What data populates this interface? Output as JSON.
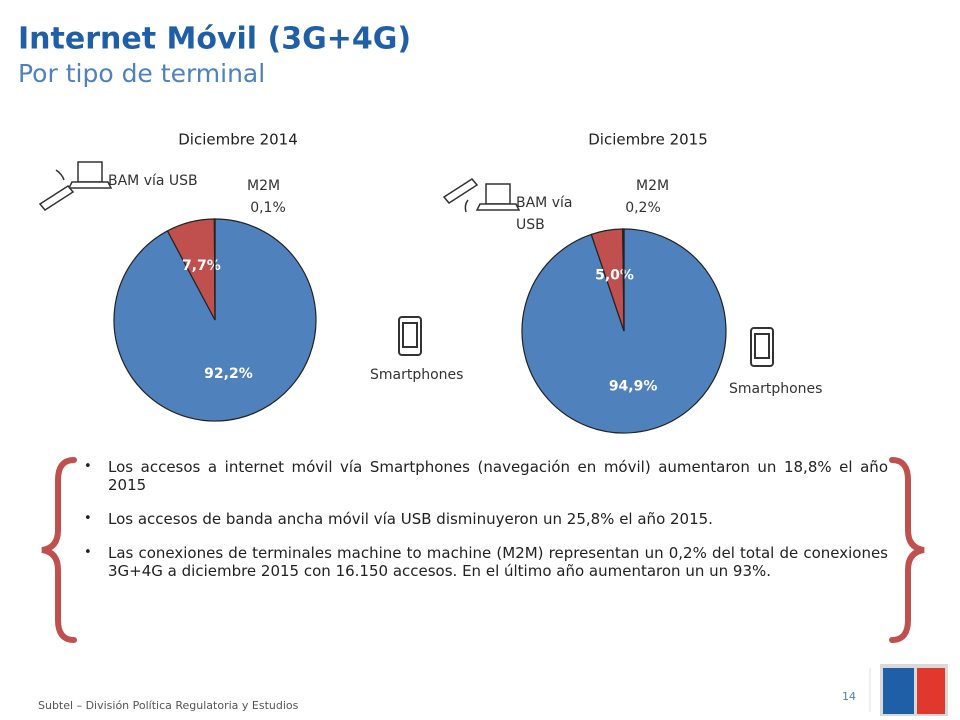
{
  "header": {
    "title": "Internet Móvil (3G+4G)",
    "subtitle": "Por tipo de terminal"
  },
  "chart_data": [
    {
      "type": "pie",
      "title": "Diciembre 2014",
      "categories": [
        "Smartphones",
        "BAM vía USB",
        "M2M"
      ],
      "values": [
        92.2,
        7.7,
        0.1
      ],
      "value_labels": [
        "92,2%",
        "7,7%",
        "0,1%"
      ],
      "colors": [
        "#4f81bd",
        "#c0504d",
        "#a33a37"
      ]
    },
    {
      "type": "pie",
      "title": "Diciembre 2015",
      "categories": [
        "Smartphones",
        "BAM vía USB",
        "M2M"
      ],
      "values": [
        94.9,
        5.0,
        0.2
      ],
      "value_labels": [
        "94,9%",
        "5,0%",
        "0,2%"
      ],
      "colors": [
        "#4f81bd",
        "#c0504d",
        "#a33a37"
      ]
    }
  ],
  "bullets": [
    "Los accesos a internet  móvil vía Smartphones (navegación en móvil) aumentaron un 18,8% el año 2015",
    "Los accesos de banda ancha móvil vía USB  disminuyeron  un 25,8% el año 2015.",
    "Las conexiones de terminales machine to machine (M2M) representan un 0,2% del total de conexiones 3G+4G a diciembre 2015 con 16.150 accesos. En el último año aumentaron un un 93%."
  ],
  "footer": {
    "source": "Subtel – División Política Regulatoria y Estudios",
    "page": "14"
  }
}
